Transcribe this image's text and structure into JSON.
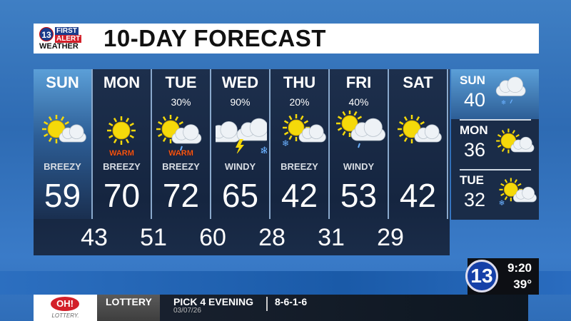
{
  "header": {
    "logo_number": "13",
    "logo_first": "FIRST",
    "logo_alert": "ALERT",
    "logo_weather": "WEATHER",
    "title": "10-DAY FORECAST"
  },
  "days": [
    {
      "day": "SUN",
      "precip": "",
      "icon": "partly-sunny",
      "tag": "",
      "desc": "BREEZY",
      "high": "59",
      "low": "43"
    },
    {
      "day": "MON",
      "precip": "",
      "icon": "sunny",
      "tag": "WARM",
      "desc": "BREEZY",
      "high": "70",
      "low": "51"
    },
    {
      "day": "TUE",
      "precip": "30%",
      "icon": "sun-clouds-showers",
      "tag": "WARM",
      "desc": "BREEZY",
      "high": "72",
      "low": "60"
    },
    {
      "day": "WED",
      "precip": "90%",
      "icon": "thunderstorm",
      "tag": "",
      "desc": "WINDY",
      "high": "65",
      "low": "28"
    },
    {
      "day": "THU",
      "precip": "20%",
      "icon": "partly-sunny-snow",
      "tag": "",
      "desc": "BREEZY",
      "high": "42",
      "low": "31"
    },
    {
      "day": "FRI",
      "precip": "40%",
      "icon": "partly-sunny-showers",
      "tag": "",
      "desc": "WINDY",
      "high": "53",
      "low": "29"
    },
    {
      "day": "SAT",
      "precip": "",
      "icon": "partly-sunny",
      "tag": "",
      "desc": "",
      "high": "42",
      "low": ""
    }
  ],
  "extended": [
    {
      "day": "SUN",
      "temp": "40",
      "icon": "cloudy-rain-snow"
    },
    {
      "day": "MON",
      "temp": "36",
      "icon": "partly-sunny"
    },
    {
      "day": "TUE",
      "temp": "32",
      "icon": "partly-sunny-snow"
    }
  ],
  "bug": {
    "channel": "13",
    "time": "9:20",
    "temp": "39°"
  },
  "ticker": {
    "logo_text": "OH!",
    "logo_sub": "LOTTERY.",
    "category": "LOTTERY",
    "game": "PICK 4 EVENING",
    "date": "03/07/26",
    "numbers": "8-6-1-6"
  },
  "colors": {
    "sun": "#f5d90a",
    "warm": "#ff6a1a",
    "panel": "#1a2c48",
    "accent": "#1540a8"
  }
}
